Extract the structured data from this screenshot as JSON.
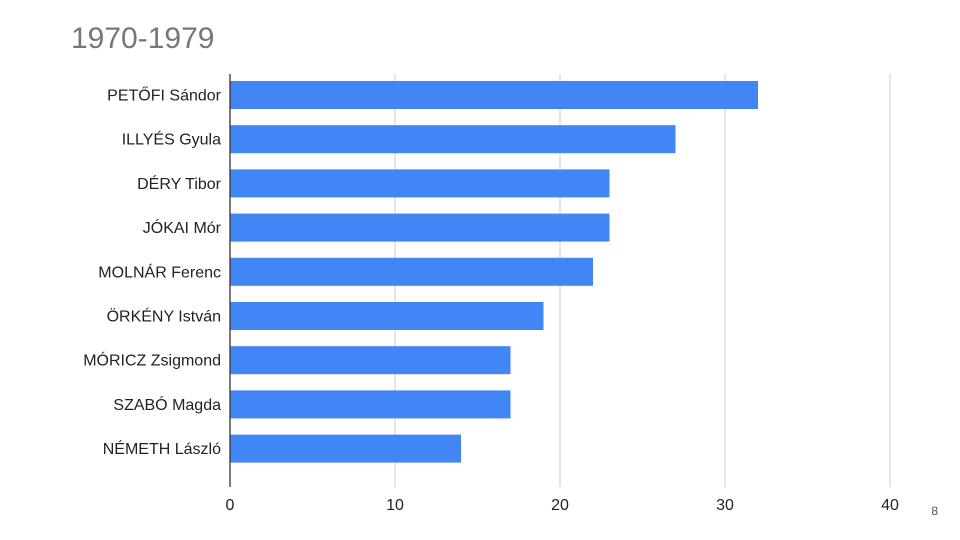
{
  "slide": {
    "title": "1970-1979",
    "page_number": "8"
  },
  "colors": {
    "bar": "#4285f4",
    "grid": "#cccccc",
    "axis": "#333333"
  },
  "chart_data": {
    "type": "bar",
    "orientation": "horizontal",
    "title": "1970-1979",
    "xlabel": "",
    "ylabel": "",
    "categories": [
      "PETŐFI Sándor",
      "ILLYÉS Gyula",
      "DÉRY Tibor",
      "JÓKAI Mór",
      "MOLNÁR Ferenc",
      "ÖRKÉNY István",
      "MÓRICZ Zsigmond",
      "SZABÓ Magda",
      "NÉMETH László"
    ],
    "values": [
      32,
      27,
      23,
      23,
      22,
      19,
      17,
      17,
      14
    ],
    "xlim": [
      0,
      40
    ],
    "xticks": [
      0,
      10,
      20,
      30,
      40
    ],
    "grid": true,
    "legend": "none"
  }
}
